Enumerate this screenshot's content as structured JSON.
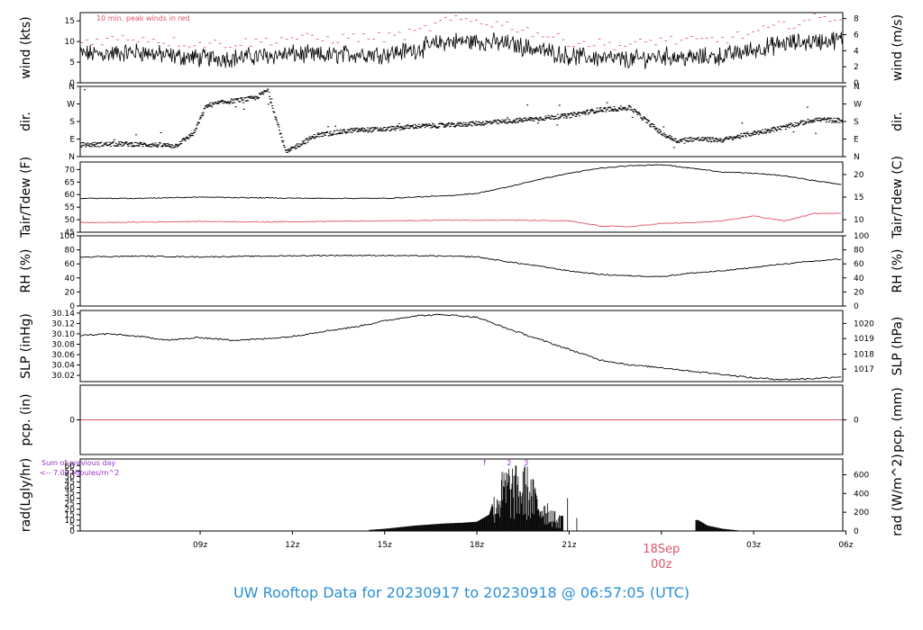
{
  "colors": {
    "red": "#df536b",
    "black": "#000000",
    "purple": "#9933cc",
    "title_blue": "#2a8fd6",
    "date_red": "#df536b"
  },
  "title": "UW Rooftop Data for 20230917  to  20230918 @ 06:57:05  (UTC)",
  "x_axis": {
    "ticks": [
      "09z",
      "12z",
      "15z",
      "18z",
      "21z",
      "03z",
      "06z"
    ],
    "tick_hours": [
      3,
      6,
      9,
      12,
      15,
      21,
      24
    ],
    "date_label": "18Sep",
    "date_sub": "00z",
    "date_hour": 18,
    "hour_range": [
      -0.9,
      23.9
    ]
  },
  "chart_data": [
    {
      "id": "wind",
      "type": "line",
      "ylabel_left": "wind (kts)",
      "ylabel_right": "wind (m/s)",
      "ylim": [
        0,
        17
      ],
      "left_ticks": [
        "0",
        "5",
        "10",
        "15"
      ],
      "left_tick_values": [
        0,
        5,
        10,
        15
      ],
      "right_ticks": [
        "0",
        "2",
        "4",
        "6",
        "8"
      ],
      "right_tick_values": [
        0,
        3.888,
        7.776,
        11.664,
        15.552
      ],
      "annotation": "10 min. peak winds in red",
      "hours": [
        -0.9,
        0,
        1,
        2,
        3,
        4,
        5,
        6,
        7,
        8,
        9,
        10,
        11,
        12,
        13,
        14,
        15,
        16,
        17,
        18,
        19,
        20,
        21,
        22,
        23,
        23.9
      ],
      "mean": [
        7,
        7,
        7.5,
        6.5,
        6,
        6,
        6.5,
        7,
        6.5,
        7,
        7,
        8,
        10,
        10,
        9.5,
        8,
        6.5,
        6,
        5.5,
        6.5,
        6,
        6.5,
        8,
        9.5,
        10,
        10.5
      ],
      "peak": [
        10,
        10.5,
        11,
        10,
        9.5,
        9.5,
        10,
        11,
        10.5,
        11,
        11,
        12,
        15,
        15,
        14,
        12,
        10,
        9.5,
        9,
        10.5,
        10,
        10.5,
        12,
        14,
        15.5,
        16
      ],
      "noise": 1.8
    },
    {
      "id": "dir",
      "type": "scatter",
      "ylabel_left": "dir.",
      "ylabel_right": "dir.",
      "ylim": [
        0,
        360
      ],
      "left_ticks": [
        "N",
        "E",
        "S",
        "W",
        "N"
      ],
      "left_tick_values": [
        0,
        90,
        180,
        270,
        360
      ],
      "right_ticks": [
        "N",
        "E",
        "S",
        "W",
        "N"
      ],
      "right_tick_values": [
        0,
        90,
        180,
        270,
        360
      ],
      "hours": [
        -0.9,
        0.5,
        1.5,
        2.2,
        2.8,
        3.2,
        3.8,
        4.8,
        5.2,
        5.8,
        6.2,
        6.8,
        8,
        9,
        10,
        11,
        12,
        13,
        14,
        15,
        16,
        17,
        18,
        18.5,
        19,
        20,
        21,
        22,
        23,
        23.9
      ],
      "deg": [
        60,
        65,
        60,
        55,
        120,
        260,
        280,
        300,
        340,
        20,
        60,
        110,
        135,
        140,
        155,
        160,
        170,
        180,
        195,
        210,
        240,
        250,
        120,
        80,
        90,
        85,
        120,
        150,
        190,
        185
      ],
      "noise": 12
    },
    {
      "id": "temp",
      "type": "line",
      "ylabel_left": "Tair/Tdew (F)",
      "ylabel_right": "Tair/Tdew (C)",
      "ylim": [
        45,
        73
      ],
      "left_ticks": [
        "45",
        "50",
        "55",
        "60",
        "65",
        "70"
      ],
      "left_tick_values": [
        45,
        50,
        55,
        60,
        65,
        70
      ],
      "right_ticks": [
        "10",
        "15",
        "20"
      ],
      "right_tick_values": [
        50,
        59,
        68
      ],
      "series": [
        {
          "color": "black",
          "hours": [
            -0.9,
            1,
            3,
            5,
            7,
            9,
            11,
            12,
            13,
            14,
            15,
            16,
            17,
            18,
            19,
            20,
            21,
            22,
            23,
            23.9
          ],
          "values": [
            58.5,
            58.5,
            59,
            58.7,
            58.5,
            58.5,
            59.5,
            60.5,
            63,
            66,
            68.5,
            70.5,
            71.5,
            72,
            70.5,
            69,
            68.5,
            67.5,
            65.5,
            64
          ]
        },
        {
          "color": "red",
          "hours": [
            -0.9,
            1,
            3,
            5,
            7,
            9,
            11,
            13,
            15,
            16,
            17,
            18,
            19,
            20,
            21,
            22,
            23,
            23.9
          ],
          "values": [
            48.8,
            49,
            49.3,
            49.1,
            49.3,
            49.5,
            49.8,
            49.8,
            49.5,
            47.5,
            47.2,
            48.5,
            48.8,
            49.5,
            51.5,
            49.5,
            52.5,
            52.5
          ]
        }
      ]
    },
    {
      "id": "rh",
      "type": "line",
      "ylabel_left": "RH (%)",
      "ylabel_right": "RH (%)",
      "ylim": [
        0,
        100
      ],
      "left_ticks": [
        "0",
        "20",
        "40",
        "60",
        "80",
        "100"
      ],
      "left_tick_values": [
        0,
        20,
        40,
        60,
        80,
        100
      ],
      "right_ticks": [
        "0",
        "20",
        "40",
        "60",
        "80",
        "100"
      ],
      "right_tick_values": [
        0,
        20,
        40,
        60,
        80,
        100
      ],
      "hours": [
        -0.9,
        1,
        3,
        5,
        7,
        9,
        11,
        12,
        13,
        14,
        15,
        16,
        17,
        18,
        19,
        20,
        21,
        22,
        23,
        23.9
      ],
      "values": [
        70,
        71,
        70,
        71,
        72,
        72,
        71,
        70,
        63,
        57,
        50,
        45,
        43,
        42,
        47,
        50,
        55,
        60,
        64,
        67
      ]
    },
    {
      "id": "slp",
      "type": "line",
      "ylabel_left": "SLP (inHg)",
      "ylabel_right": "SLP (hPa)",
      "ylim": [
        30.008,
        30.145
      ],
      "left_ticks": [
        "30.02",
        "30.04",
        "30.06",
        "30.08",
        "30.10",
        "30.12",
        "30.14"
      ],
      "left_tick_values": [
        30.02,
        30.04,
        30.06,
        30.08,
        30.1,
        30.12,
        30.14
      ],
      "right_ticks": [
        "1017",
        "1018",
        "1019",
        "1020"
      ],
      "right_tick_values": [
        30.032,
        30.061,
        30.091,
        30.12
      ],
      "hours": [
        -0.9,
        0,
        1,
        2,
        3,
        4,
        5,
        6,
        7,
        8,
        9,
        10,
        11,
        12,
        13,
        14,
        15,
        16,
        17,
        18,
        19,
        20,
        21,
        22,
        23,
        23.9
      ],
      "values": [
        30.097,
        30.1,
        30.095,
        30.088,
        30.093,
        30.088,
        30.09,
        30.095,
        30.105,
        30.113,
        30.125,
        30.135,
        30.137,
        30.132,
        30.11,
        30.09,
        30.07,
        30.05,
        30.04,
        30.035,
        30.028,
        30.022,
        30.015,
        30.012,
        30.014,
        30.018
      ],
      "noise": 0.0015
    },
    {
      "id": "pcp",
      "type": "line",
      "ylabel_left": "pcp. (in)",
      "ylabel_right": "pcp. (mm)",
      "ylim": [
        -1,
        1
      ],
      "left_ticks": [
        "0"
      ],
      "left_tick_values": [
        0
      ],
      "right_ticks": [
        "0"
      ],
      "right_tick_values": [
        0
      ],
      "hours": [
        -0.9,
        23.9
      ],
      "values": [
        0,
        0
      ]
    },
    {
      "id": "rad",
      "type": "bar",
      "ylabel_left": "rad(Lgly/hr)",
      "ylabel_right": "rad (W/m^2)",
      "ylim": [
        0,
        66
      ],
      "left_ticks": [
        "0",
        "5",
        "10",
        "15",
        "20",
        "25",
        "30",
        "35",
        "40",
        "45",
        "50",
        "55",
        "60"
      ],
      "left_tick_values": [
        0,
        5,
        10,
        15,
        20,
        25,
        30,
        35,
        40,
        45,
        50,
        55,
        60
      ],
      "right_ticks": [
        "0",
        "200",
        "400",
        "600"
      ],
      "right_tick_values": [
        0,
        17.2,
        34.4,
        51.6
      ],
      "note_line1": "Sum of previous day",
      "note_line2": "<-- 7.06 MJoules/m^2",
      "markers": [
        {
          "label": "f",
          "hour": 12.25
        },
        {
          "label": "2",
          "hour": 13.05
        },
        {
          "label": "3",
          "hour": 13.6
        }
      ],
      "hours": [
        8.5,
        9,
        9.5,
        10,
        10.5,
        11,
        11.5,
        12,
        12.4,
        12.7,
        13,
        13.3,
        13.6,
        14,
        14.3,
        14.6,
        19.2,
        19.5,
        20,
        20.5
      ],
      "values": [
        1,
        2,
        3.5,
        5,
        6,
        7,
        7.5,
        8.5,
        15,
        45,
        60,
        55,
        58,
        35,
        28,
        14,
        10,
        5,
        2,
        0.5
      ]
    }
  ]
}
